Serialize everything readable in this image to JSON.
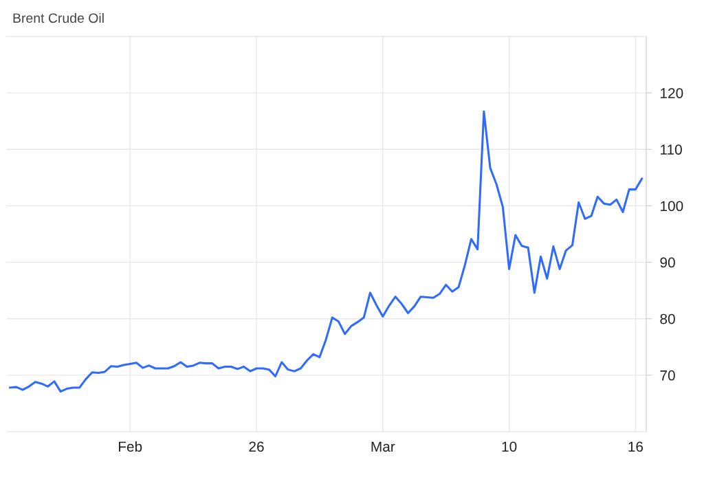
{
  "chart_data": {
    "type": "line",
    "title": "Brent Crude Oil",
    "categories": [
      null,
      null,
      null,
      null,
      null,
      null,
      null,
      null,
      null,
      null,
      null,
      null,
      null,
      null,
      null,
      null,
      null,
      null,
      null,
      "Feb",
      null,
      null,
      null,
      null,
      null,
      null,
      null,
      null,
      null,
      null,
      null,
      null,
      null,
      null,
      null,
      null,
      null,
      null,
      null,
      "26",
      null,
      null,
      null,
      null,
      null,
      null,
      null,
      null,
      null,
      null,
      null,
      null,
      null,
      null,
      null,
      null,
      null,
      null,
      null,
      "Mar",
      null,
      null,
      null,
      null,
      null,
      null,
      null,
      null,
      null,
      null,
      null,
      null,
      null,
      null,
      null,
      null,
      null,
      null,
      null,
      "10",
      null,
      null,
      null,
      null,
      null,
      null,
      null,
      null,
      null,
      null,
      null,
      null,
      null,
      null,
      null,
      null,
      null,
      null,
      null,
      "16",
      null
    ],
    "series": [
      {
        "color": "#2f6bff",
        "values": [
          67.8,
          67.9,
          67.4,
          68.0,
          68.8,
          68.5,
          68.0,
          68.9,
          67.1,
          67.6,
          67.8,
          67.8,
          69.3,
          70.5,
          70.4,
          70.6,
          71.6,
          71.5,
          71.8,
          72.0,
          72.2,
          71.3,
          71.7,
          71.2,
          71.2,
          71.2,
          71.6,
          72.3,
          71.5,
          71.7,
          72.2,
          72.1,
          72.1,
          71.2,
          71.5,
          71.5,
          71.1,
          71.5,
          70.7,
          71.2,
          71.2,
          71.0,
          69.8,
          72.3,
          71.0,
          70.7,
          71.2,
          72.6,
          73.7,
          73.2,
          76.3,
          80.2,
          79.5,
          77.3,
          78.7,
          79.4,
          80.2,
          84.6,
          82.4,
          80.4,
          82.3,
          83.9,
          82.6,
          81.0,
          82.2,
          83.9,
          83.8,
          83.7,
          84.4,
          86.0,
          84.8,
          85.6,
          89.5,
          94.1,
          92.3,
          116.7,
          106.7,
          103.8,
          99.8,
          88.8,
          94.8,
          92.9,
          92.6,
          84.6,
          91.0,
          87.1,
          92.8,
          88.8,
          92.1,
          93.0,
          100.6,
          97.7,
          98.2,
          101.6,
          100.4,
          100.2,
          101.1,
          98.9,
          102.9,
          102.9,
          104.8
        ]
      }
    ],
    "ylim": [
      60,
      130
    ],
    "yticks": [
      70,
      80,
      90,
      100,
      110,
      120
    ],
    "grid": true,
    "line_style": "solid",
    "marker": "none"
  }
}
